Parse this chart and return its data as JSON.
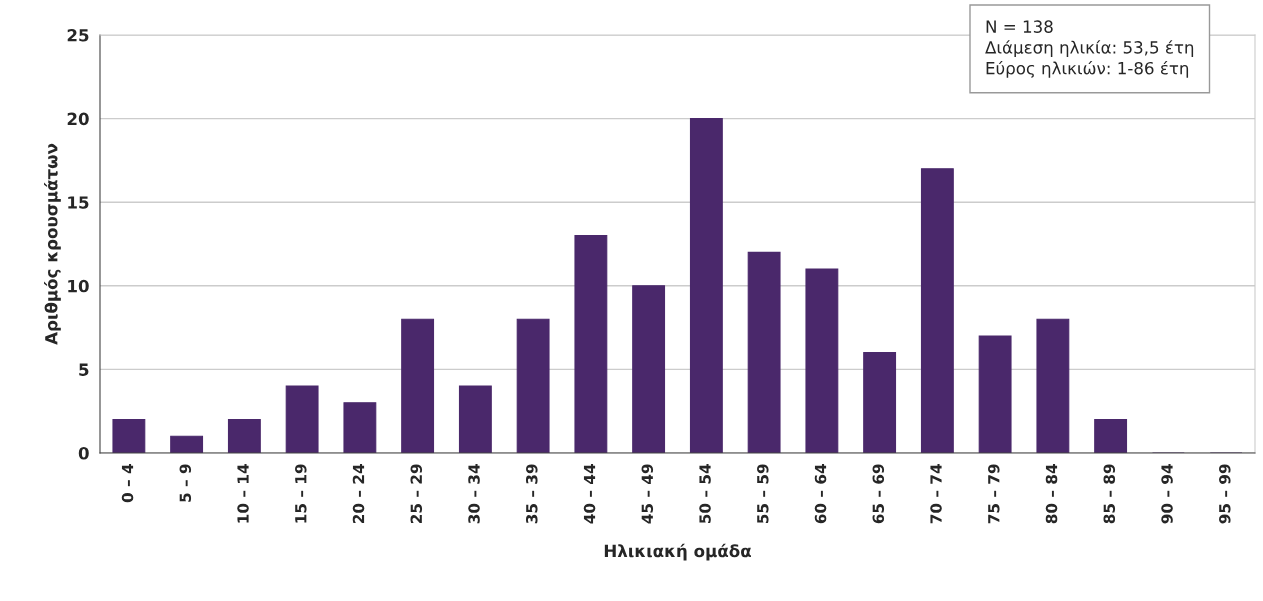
{
  "chart_data": {
    "type": "bar",
    "xlabel": "Ηλικιακή ομάδα",
    "ylabel": "Αριθμός κρουσμάτων",
    "categories": [
      "0 – 4",
      "5 – 9",
      "10 – 14",
      "15 – 19",
      "20 – 24",
      "25 – 29",
      "30 – 34",
      "35 – 39",
      "40 – 44",
      "45 – 49",
      "50 – 54",
      "55 – 59",
      "60 – 64",
      "65 – 69",
      "70 – 74",
      "75 – 79",
      "80 – 84",
      "85 – 89",
      "90 – 94",
      "95 – 99"
    ],
    "values": [
      2,
      1,
      2,
      4,
      3,
      8,
      4,
      8,
      13,
      10,
      20,
      12,
      11,
      6,
      17,
      7,
      8,
      2,
      0,
      0
    ],
    "color": "#4a286b",
    "ylim": [
      0,
      25
    ],
    "yticks": [
      0,
      5,
      10,
      15,
      20,
      25
    ],
    "grid": "y",
    "legend": false,
    "annotations": [
      "N = 138\nΔιάμεση ηλικία: 53,5 έτη\nΕύρος ηλικιών: 1-86 έτη"
    ]
  }
}
